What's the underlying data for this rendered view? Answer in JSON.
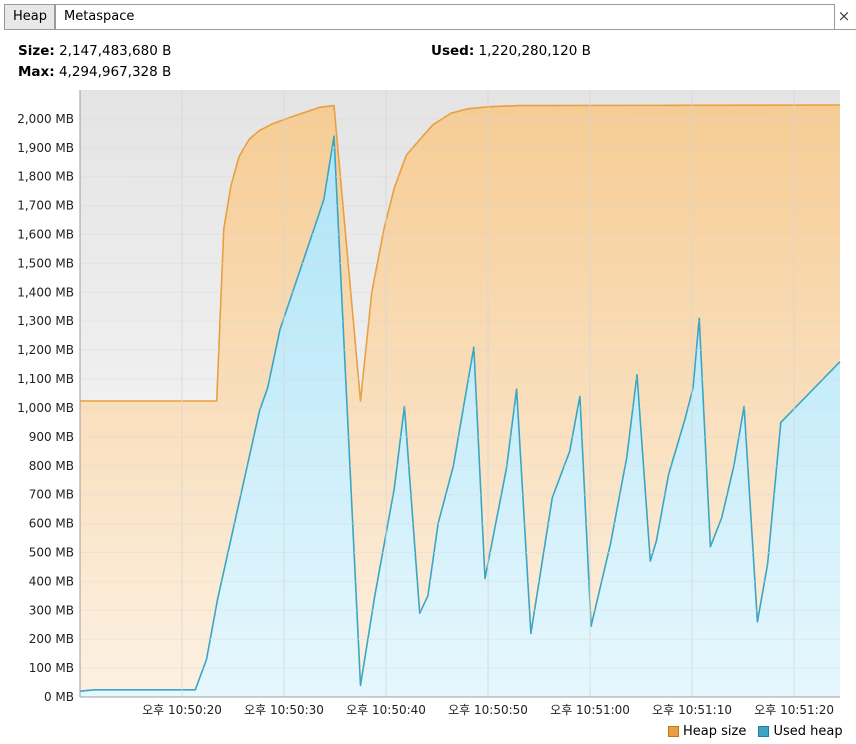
{
  "tabs": [
    {
      "label": "Heap",
      "active": true
    },
    {
      "label": "Metaspace",
      "active": false
    }
  ],
  "close_glyph": "×",
  "info": {
    "size_label": "Size:",
    "size_value": "2,147,483,680 B",
    "max_label": "Max:",
    "max_value": "4,294,967,328 B",
    "used_label": "Used:",
    "used_value": "1,220,280,120 B"
  },
  "colors": {
    "heap_line": "#e8a040",
    "heap_fill": "#f6cc94",
    "used_line": "#3aa6c4",
    "used_fill": "#aee4f7",
    "plot_bg": "#efefef",
    "grid": "#d6d6d6"
  },
  "chart_data": {
    "type": "area",
    "y_unit": "MB",
    "ylim": [
      0,
      2100
    ],
    "y_ticks": [
      "0 MB",
      "100 MB",
      "200 MB",
      "300 MB",
      "400 MB",
      "500 MB",
      "600 MB",
      "700 MB",
      "800 MB",
      "900 MB",
      "1,000 MB",
      "1,100 MB",
      "1,200 MB",
      "1,300 MB",
      "1,400 MB",
      "1,500 MB",
      "1,600 MB",
      "1,700 MB",
      "1,800 MB",
      "1,900 MB",
      "2,000 MB"
    ],
    "x_unit": "seconds after 10:50:10",
    "xlim": [
      10.0,
      84.5
    ],
    "x_ticks": [
      {
        "t": 20,
        "label": "오후 10:50:20"
      },
      {
        "t": 30,
        "label": "오후 10:50:30"
      },
      {
        "t": 40,
        "label": "오후 10:50:40"
      },
      {
        "t": 50,
        "label": "오후 10:50:50"
      },
      {
        "t": 60,
        "label": "오후 10:51:00"
      },
      {
        "t": 70,
        "label": "오후 10:51:10"
      },
      {
        "t": 80,
        "label": "오후 10:51:20"
      }
    ],
    "grid": true,
    "legend_position": "bottom-right",
    "series": [
      {
        "name": "Heap size",
        "points": [
          [
            10.0,
            1024
          ],
          [
            23.4,
            1024
          ],
          [
            24.1,
            1620
          ],
          [
            24.8,
            1770
          ],
          [
            25.6,
            1870
          ],
          [
            26.6,
            1930
          ],
          [
            27.6,
            1960
          ],
          [
            29.0,
            1985
          ],
          [
            31.0,
            2010
          ],
          [
            33.5,
            2040
          ],
          [
            34.9,
            2046
          ],
          [
            37.5,
            1024
          ],
          [
            38.6,
            1400
          ],
          [
            39.8,
            1620
          ],
          [
            40.8,
            1760
          ],
          [
            42.0,
            1875
          ],
          [
            43.6,
            1940
          ],
          [
            44.6,
            1980
          ],
          [
            46.4,
            2020
          ],
          [
            48.0,
            2035
          ],
          [
            50.0,
            2042
          ],
          [
            53.0,
            2046
          ],
          [
            84.5,
            2048
          ]
        ]
      },
      {
        "name": "Used heap",
        "points": [
          [
            10.0,
            20
          ],
          [
            11.4,
            25
          ],
          [
            21.3,
            25
          ],
          [
            22.4,
            130
          ],
          [
            23.5,
            340
          ],
          [
            27.6,
            990
          ],
          [
            28.4,
            1070
          ],
          [
            29.6,
            1270
          ],
          [
            33.9,
            1720
          ],
          [
            34.9,
            1940
          ],
          [
            37.5,
            40
          ],
          [
            38.9,
            350
          ],
          [
            40.8,
            720
          ],
          [
            41.8,
            1005
          ],
          [
            43.3,
            290
          ],
          [
            44.1,
            350
          ],
          [
            45.1,
            600
          ],
          [
            46.6,
            800
          ],
          [
            48.6,
            1210
          ],
          [
            49.7,
            410
          ],
          [
            51.8,
            790
          ],
          [
            52.8,
            1065
          ],
          [
            54.2,
            220
          ],
          [
            55.0,
            400
          ],
          [
            56.3,
            690
          ],
          [
            58.0,
            850
          ],
          [
            59.0,
            1040
          ],
          [
            60.1,
            245
          ],
          [
            62.0,
            530
          ],
          [
            63.6,
            830
          ],
          [
            64.6,
            1115
          ],
          [
            65.9,
            470
          ],
          [
            66.5,
            540
          ],
          [
            67.7,
            770
          ],
          [
            69.3,
            960
          ],
          [
            70.1,
            1070
          ],
          [
            70.7,
            1310
          ],
          [
            71.8,
            520
          ],
          [
            72.9,
            620
          ],
          [
            74.1,
            800
          ],
          [
            75.1,
            1005
          ],
          [
            76.4,
            260
          ],
          [
            77.4,
            460
          ],
          [
            78.7,
            950
          ],
          [
            84.5,
            1160
          ]
        ]
      }
    ]
  }
}
